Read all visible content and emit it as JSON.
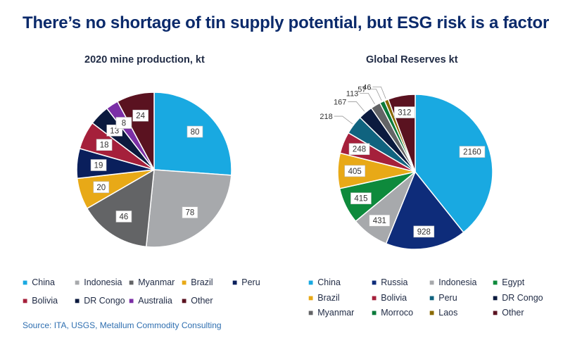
{
  "title": "There’s no shortage of tin supply potential, but ESG risk is a factor",
  "source": "Source: ITA, USGS, Metallum Commodity Consulting",
  "chart_data": [
    {
      "type": "pie",
      "title": "2020 mine production, kt",
      "categories": [
        "China",
        "Indonesia",
        "Myanmar",
        "Brazil",
        "Peru",
        "Bolivia",
        "DR Congo",
        "Australia",
        "Other"
      ],
      "values": [
        80,
        78,
        46,
        20,
        19,
        18,
        13,
        8,
        24
      ],
      "colors": [
        "#19a9e1",
        "#a7a9ac",
        "#636466",
        "#e8a917",
        "#0a1f5c",
        "#a5203b",
        "#0b1a3e",
        "#7b2fa6",
        "#5a1220"
      ],
      "legend": "bottom"
    },
    {
      "type": "pie",
      "title": "Global Reserves kt",
      "categories": [
        "China",
        "Russia",
        "Indonesia",
        "Egypt",
        "Brazil",
        "Bolivia",
        "Peru",
        "DR Congo",
        "Myanmar",
        "Morroco",
        "Laos",
        "Other"
      ],
      "values": [
        2160,
        928,
        431,
        415,
        405,
        248,
        218,
        167,
        113,
        57,
        46,
        312
      ],
      "colors": [
        "#19a9e1",
        "#0e2c7a",
        "#a7a9ac",
        "#0e8a3c",
        "#e8a917",
        "#a5203b",
        "#10637f",
        "#0b1a3e",
        "#636466",
        "#0b7a3a",
        "#8a6a00",
        "#5a1220"
      ],
      "legend": "bottom"
    }
  ]
}
